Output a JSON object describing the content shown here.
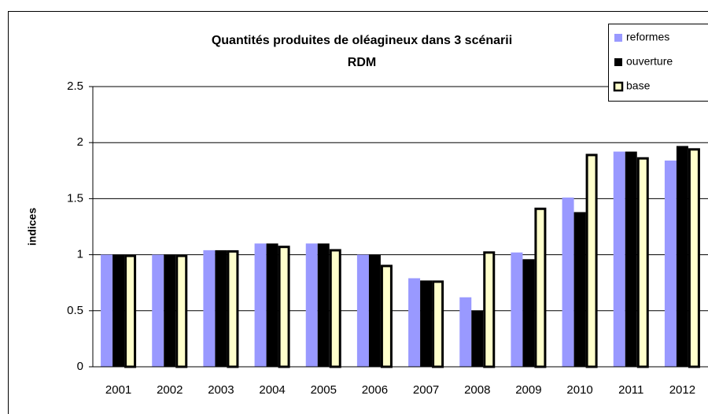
{
  "chart_data": {
    "type": "bar",
    "title": [
      "Quantités produites de oléagineux dans 3 scénarii",
      "RDM"
    ],
    "ylabel": "indices",
    "categories": [
      "2001",
      "2002",
      "2003",
      "2004",
      "2005",
      "2006",
      "2007",
      "2008",
      "2009",
      "2010",
      "2011",
      "2012"
    ],
    "series": [
      {
        "name": "reformes",
        "color": "#9999ff",
        "values": [
          1.0,
          1.0,
          1.04,
          1.1,
          1.1,
          1.0,
          0.79,
          0.62,
          1.02,
          1.51,
          1.92,
          1.84
        ]
      },
      {
        "name": "ouverture",
        "color": "#000000",
        "values": [
          1.0,
          1.0,
          1.04,
          1.1,
          1.1,
          1.0,
          0.77,
          0.5,
          0.96,
          1.38,
          1.92,
          1.97
        ]
      },
      {
        "name": "base",
        "color": "#ffffcc",
        "values": [
          1.0,
          1.0,
          1.04,
          1.08,
          1.05,
          0.91,
          0.77,
          1.03,
          1.42,
          1.9,
          1.87,
          1.95
        ]
      }
    ],
    "ylim": [
      0,
      2.5
    ],
    "yticks": [
      0,
      0.5,
      1,
      1.5,
      2,
      2.5
    ],
    "grid": true,
    "legend": "top-right"
  }
}
